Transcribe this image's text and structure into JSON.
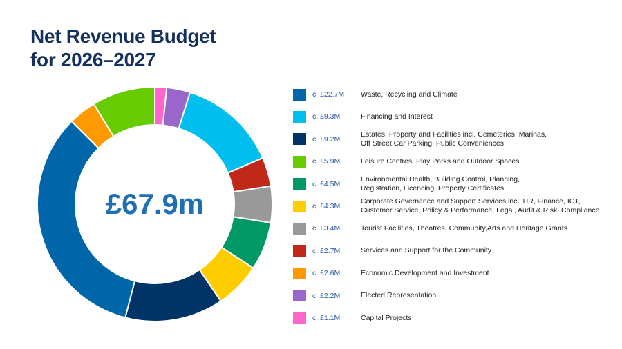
{
  "chart_data": {
    "type": "pie",
    "variant": "donut",
    "title": "Net Revenue Budget for 2026–2027",
    "title_lines": [
      "Net Revenue Budget",
      "for 2026–2027"
    ],
    "center_label": "£67.9m",
    "unit": "£M",
    "legend_position": "right",
    "legend": [
      {
        "key": "waste",
        "value_label": "c. £22.7M",
        "label": [
          "Waste, Recycling and Climate"
        ]
      },
      {
        "key": "financing",
        "value_label": "c. £9.3M",
        "label": [
          "Financing and Interest"
        ]
      },
      {
        "key": "estates",
        "value_label": "c. £9.2M",
        "label": [
          "Estates, Property and Facilities incl. Cemeteries, Marinas,",
          "Off Street Car Parking, Public Conveniences"
        ]
      },
      {
        "key": "leisure",
        "value_label": "c. £5.9M",
        "label": [
          "Leisure Centres, Play Parks and Outdoor Spaces"
        ]
      },
      {
        "key": "environmental",
        "value_label": "c. £4.5M",
        "label": [
          "Environmental Health, Building Control, Planning,",
          "Registration, Licencing, Property Certificates"
        ]
      },
      {
        "key": "corporate",
        "value_label": "c. £4.3M",
        "label": [
          "Corporate Governance and Support Services incl. HR, Finance, ICT,",
          "Customer Service, Policy & Performance, Legal, Audit & Risk, Compliance"
        ]
      },
      {
        "key": "tourist",
        "value_label": "c. £3.4M",
        "label": [
          "Tourist Facilities, Theatres, Community,Arts and Heritage Grants"
        ]
      },
      {
        "key": "services",
        "value_label": "c. £2.7M",
        "label": [
          "Services and Support for the Community"
        ]
      },
      {
        "key": "economic",
        "value_label": "c. £2.6M",
        "label": [
          "Economic Development and Investment"
        ]
      },
      {
        "key": "elected",
        "value_label": "c. £2.2M",
        "label": [
          "Elected Representation"
        ]
      },
      {
        "key": "capital",
        "value_label": "c. £1.1M",
        "label": [
          "Capital Projects"
        ]
      }
    ],
    "slices": [
      {
        "key": "capital",
        "value": 1.1,
        "color": "#ff66cc"
      },
      {
        "key": "elected",
        "value": 2.2,
        "color": "#9966cc"
      },
      {
        "key": "financing",
        "value": 9.3,
        "color": "#00bfef"
      },
      {
        "key": "services",
        "value": 2.7,
        "color": "#c0281a"
      },
      {
        "key": "tourist",
        "value": 3.4,
        "color": "#999999"
      },
      {
        "key": "environmental",
        "value": 4.5,
        "color": "#009966"
      },
      {
        "key": "corporate",
        "value": 4.3,
        "color": "#ffcc00"
      },
      {
        "key": "estates",
        "value": 9.2,
        "color": "#003366"
      },
      {
        "key": "waste",
        "value": 22.7,
        "color": "#0066aa"
      },
      {
        "key": "economic",
        "value": 2.6,
        "color": "#ff9900"
      },
      {
        "key": "leisure",
        "value": 5.9,
        "color": "#66cc00"
      }
    ]
  }
}
